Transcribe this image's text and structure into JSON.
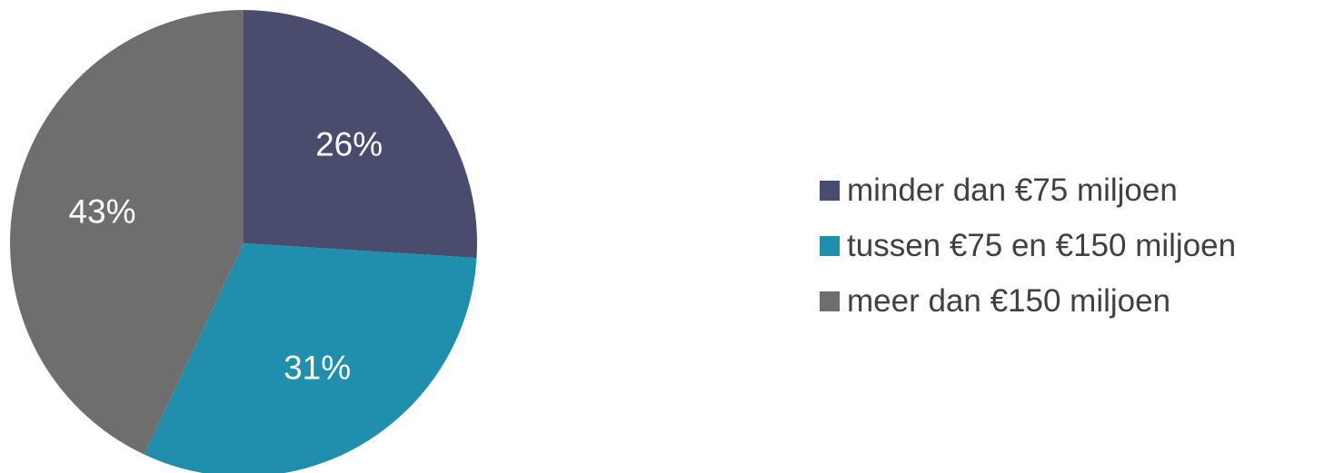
{
  "chart_data": {
    "type": "pie",
    "title": "",
    "start_angle_deg": 0,
    "direction": "clockwise",
    "legend_position": "right",
    "slices": [
      {
        "label": "minder dan €75 miljoen",
        "value": 26,
        "value_label": "26%",
        "color": "#4a4c6e"
      },
      {
        "label": "tussen €75 en €150 miljoen",
        "value": 31,
        "value_label": "31%",
        "color": "#1f8fad"
      },
      {
        "label": "meer dan €150 miljoen",
        "value": 43,
        "value_label": "43%",
        "color": "#6e6e6e"
      }
    ]
  }
}
